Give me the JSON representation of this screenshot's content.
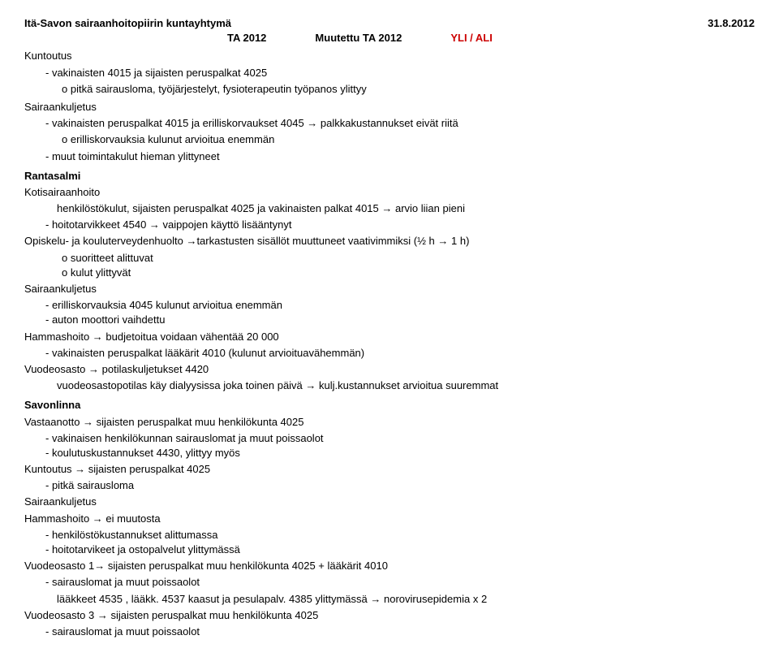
{
  "header": {
    "left": "Itä-Savon sairaanhoitopiirin kuntayhtymä",
    "right": "31.8.2012",
    "col1": "TA 2012",
    "col2": "Muutettu TA 2012",
    "col3": "YLI / ALI"
  },
  "kuntoutus": {
    "title": "Kuntoutus",
    "l1": "vakinaisten 4015 ja sijaisten peruspalkat 4025",
    "s1": "pitkä sairausloma, työjärjestelyt, fysioterapeutin työpanos ylittyy"
  },
  "sairaankuljetus1": {
    "title": "Sairaankuljetus",
    "l1": "vakinaisten peruspalkat 4015 ja erilliskorvaukset 4045 → palkkakustannukset eivät riitä",
    "s1": "erilliskorvauksia kulunut arvioitua enemmän",
    "l2": "muut toimintakulut hieman ylittyneet"
  },
  "rantasalmi": {
    "title": "Rantasalmi",
    "koti": "Kotisairaanhoito",
    "k1": "henkilöstökulut, sijaisten peruspalkat 4025 ja vakinaisten palkat 4015 → arvio liian pieni",
    "k1a": "hoitotarvikkeet 4540 → vaippojen käyttö lisääntynyt",
    "op": "Opiskelu- ja kouluterveydenhuolto →tarkastusten sisällöt muuttuneet vaativimmiksi (½ h → 1 h)",
    "op1": "suoritteet alittuvat",
    "op2": "kulut ylittyvät",
    "sk": "Sairaankuljetus",
    "sk1": "erilliskorvauksia  4045 kulunut arvioitua enemmän",
    "sk2": "auton moottori vaihdettu",
    "ham": "Hammashoito → budjetoitua voidaan vähentää 20 000",
    "ham1": "vakinaisten peruspalkat lääkärit 4010 (kulunut arvioituavähemmän)",
    "vuo": "Vuodeosasto → potilaskuljetukset 4420",
    "vuo1": "vuodeosastopotilas käy dialyysissa joka toinen päivä → kulj.kustannukset arvioitua suuremmat"
  },
  "savonlinna": {
    "title": "Savonlinna",
    "vas": "Vastaanotto → sijaisten peruspalkat muu henkilökunta 4025",
    "vas1": "vakinaisen henkilökunnan sairauslomat ja muut poissaolot",
    "vas2": "koulutuskustannukset 4430, ylittyy myös",
    "kun": "Kuntoutus → sijaisten peruspalkat 4025",
    "kun1": "pitkä sairausloma",
    "sk": "Sairaankuljetus",
    "ham": "Hammashoito → ei muutosta",
    "ham1": "henkilöstökustannukset alittumassa",
    "ham2": "hoitotarvikeet ja ostopalvelut ylittymässä",
    "v1": "Vuodeosasto 1→ sijaisten peruspalkat muu henkilökunta 4025 + lääkärit 4010",
    "v1a": "sairauslomat ja muut poissaolot",
    "v1b": "lääkkeet 4535 , lääkk. 4537 kaasut ja pesulapalv. 4385  ylittymässä → norovirusepidemia x 2",
    "v3": "Vuodeosasto 3 → sijaisten peruspalkat muu henkilökunta 4025",
    "v3a": "sairauslomat ja muut poissaolot"
  }
}
